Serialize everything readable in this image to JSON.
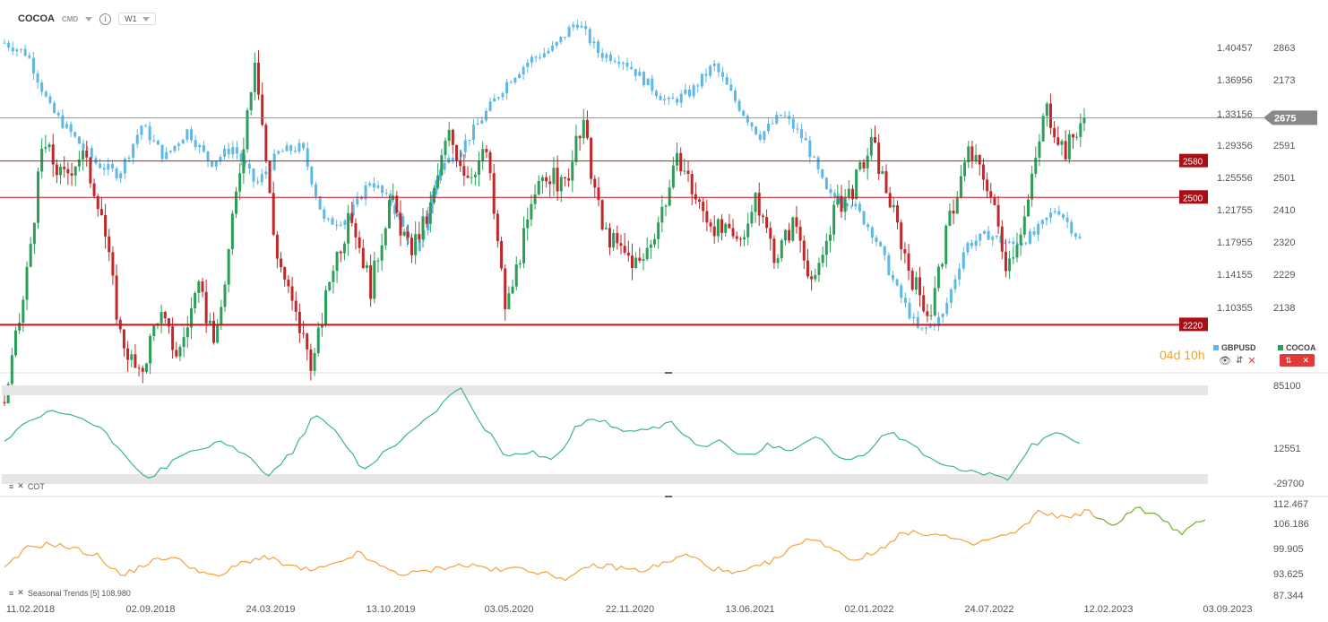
{
  "header": {
    "symbol": "COCOA",
    "market": "CMD",
    "timeframe": "W1",
    "info_icon": "info-icon"
  },
  "colors": {
    "up": "#2b9e58",
    "down": "#c0282b",
    "gbpusd": "#5db8e6",
    "cot": "#3bb58a",
    "seasonal_past": "#f5a23a",
    "seasonal_future": "#77ad2f",
    "level": "#c4151c",
    "price_tag": "#888888",
    "timer": "#f2a33a"
  },
  "legend": [
    {
      "name": "GBPUSD",
      "color": "#5db8e6"
    },
    {
      "name": "COCOA",
      "color": "#2b9e58"
    }
  ],
  "timer": "04d 10h",
  "controls": {
    "eye_icon": "eye-icon",
    "sort_icon": "sort-arrows-icon",
    "close_icon": "close-icon",
    "candle_icon": "candlestick-icon",
    "remove_icon": "close-icon"
  },
  "price_axis_left": [
    "1.40457",
    "1.36956",
    "1.33156",
    "1.29356",
    "1.25556",
    "1.21755",
    "1.17955",
    "1.14155",
    "1.10355"
  ],
  "price_axis_right": [
    "2863",
    "2173",
    "",
    "2591",
    "2501",
    "2410",
    "2320",
    "2229",
    "2138"
  ],
  "current_price": "2675",
  "levels": [
    {
      "label": "2580"
    },
    {
      "label": "2500"
    },
    {
      "label": "2220"
    }
  ],
  "cot_axis": [
    "85100",
    "12551",
    "-29700"
  ],
  "cot_label": "COT",
  "seasonal_axis": [
    "112.467",
    "106.186",
    "99.905",
    "93.625",
    "87.344"
  ],
  "seasonal_label": "Seasonal  Trends  [5]  108.980",
  "x_axis": [
    "11.02.2018",
    "02.09.2018",
    "24.03.2019",
    "13.10.2019",
    "03.05.2020",
    "22.11.2020",
    "13.06.2021",
    "02.01.2022",
    "24.07.2022",
    "12.02.2023",
    "03.09.2023"
  ],
  "chart_data": [
    {
      "type": "candlestick",
      "title": "COCOA",
      "series": [
        {
          "name": "COCOA"
        },
        {
          "name": "GBPUSD"
        }
      ],
      "ylim_right": [
        2138,
        2863
      ],
      "ylim_left": [
        1.10355,
        1.40457
      ],
      "last_value": 2675,
      "horizontal_levels": [
        2580,
        2500,
        2220
      ],
      "cocoa_close_key": [
        2050,
        2280,
        2620,
        2540,
        2600,
        2480,
        2200,
        2100,
        2250,
        2150,
        2300,
        2180,
        2500,
        2820,
        2400,
        2250,
        2130,
        2350,
        2460,
        2300,
        2500,
        2380,
        2460,
        2640,
        2550,
        2600,
        2250,
        2420,
        2560,
        2520,
        2660,
        2430,
        2380,
        2350,
        2460,
        2590,
        2480,
        2430,
        2400,
        2490,
        2370,
        2450,
        2300,
        2470,
        2520,
        2620,
        2480,
        2330,
        2240,
        2450,
        2600,
        2530,
        2350,
        2470,
        2700,
        2600,
        2680
      ],
      "gbpusd_close_key": [
        1.395,
        1.385,
        1.335,
        1.31,
        1.285,
        1.275,
        1.32,
        1.29,
        1.315,
        1.285,
        1.3,
        1.265,
        1.295,
        1.3,
        1.23,
        1.235,
        1.27,
        1.245,
        1.2,
        1.28,
        1.3,
        1.33,
        1.36,
        1.38,
        1.39,
        1.415,
        1.385,
        1.38,
        1.36,
        1.34,
        1.35,
        1.375,
        1.34,
        1.31,
        1.33,
        1.305,
        1.255,
        1.25,
        1.22,
        1.17,
        1.13,
        1.145,
        1.21,
        1.22,
        1.21,
        1.22,
        1.245,
        1.215
      ]
    },
    {
      "type": "line",
      "title": "COT",
      "ylim": [
        -29700,
        85100
      ],
      "values": [
        20000,
        42000,
        55000,
        50000,
        35000,
        5000,
        -25000,
        -5000,
        10000,
        18000,
        6000,
        -20000,
        5000,
        52000,
        28000,
        -15000,
        10000,
        30000,
        55000,
        85000,
        40000,
        2000,
        8000,
        -3000,
        40000,
        46000,
        30000,
        33000,
        42000,
        12000,
        20000,
        0,
        16000,
        10000,
        28000,
        -3000,
        3000,
        32000,
        13000,
        -3000,
        -15000,
        -18000,
        -25000,
        15000,
        28000,
        20000
      ]
    },
    {
      "type": "line",
      "title": "Seasonal Trends [5]",
      "ylim": [
        87.344,
        112.467
      ],
      "last_value": 108.98,
      "values": [
        94.5,
        100.5,
        101.5,
        100,
        98,
        92.5,
        96,
        98,
        95,
        92,
        96,
        98,
        95.5,
        94,
        95.5,
        99,
        95,
        93,
        94,
        95.5,
        95.5,
        94,
        95,
        93,
        92,
        95.5,
        95,
        94,
        96,
        98.5,
        95,
        93,
        95,
        98,
        103,
        101,
        97,
        99,
        104,
        104.5,
        103.5,
        101,
        103,
        104.5,
        110.5,
        108.5,
        110.5,
        106,
        111.5,
        109,
        104,
        108.5
      ]
    }
  ]
}
